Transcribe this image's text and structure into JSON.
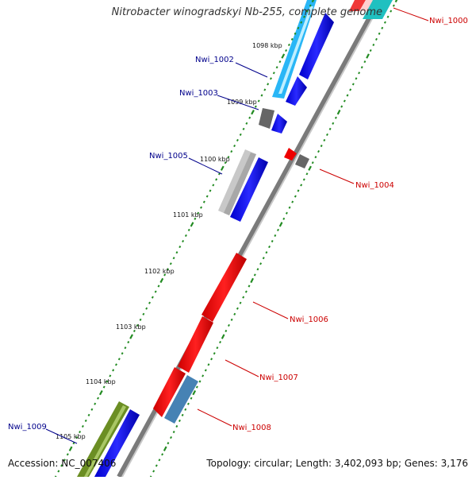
{
  "title": "Nitrobacter winogradskyi Nb-255, complete genome",
  "accession": "Accession: NC_007406",
  "summary": "Topology: circular; Length: 3,402,093 bp; Genes: 3,176",
  "scale_labels": [
    "1098 kbp",
    "1099 kbp",
    "1100 kbp",
    "1101 kbp",
    "1102 kbp",
    "1103 kbp",
    "1104 kbp",
    "1105 kbp"
  ],
  "genes": {
    "reverse_strand": [
      "Nwi_1002",
      "Nwi_1003",
      "Nwi_1005",
      "Nwi_1009"
    ],
    "forward_strand": [
      "Nwi_1000",
      "Nwi_1004",
      "Nwi_1006",
      "Nwi_1007",
      "Nwi_1008"
    ]
  },
  "colors": {
    "reverse_label": "#00008b",
    "forward_label": "#cc0000",
    "backbone": "#888888",
    "tick": "#228b22"
  }
}
